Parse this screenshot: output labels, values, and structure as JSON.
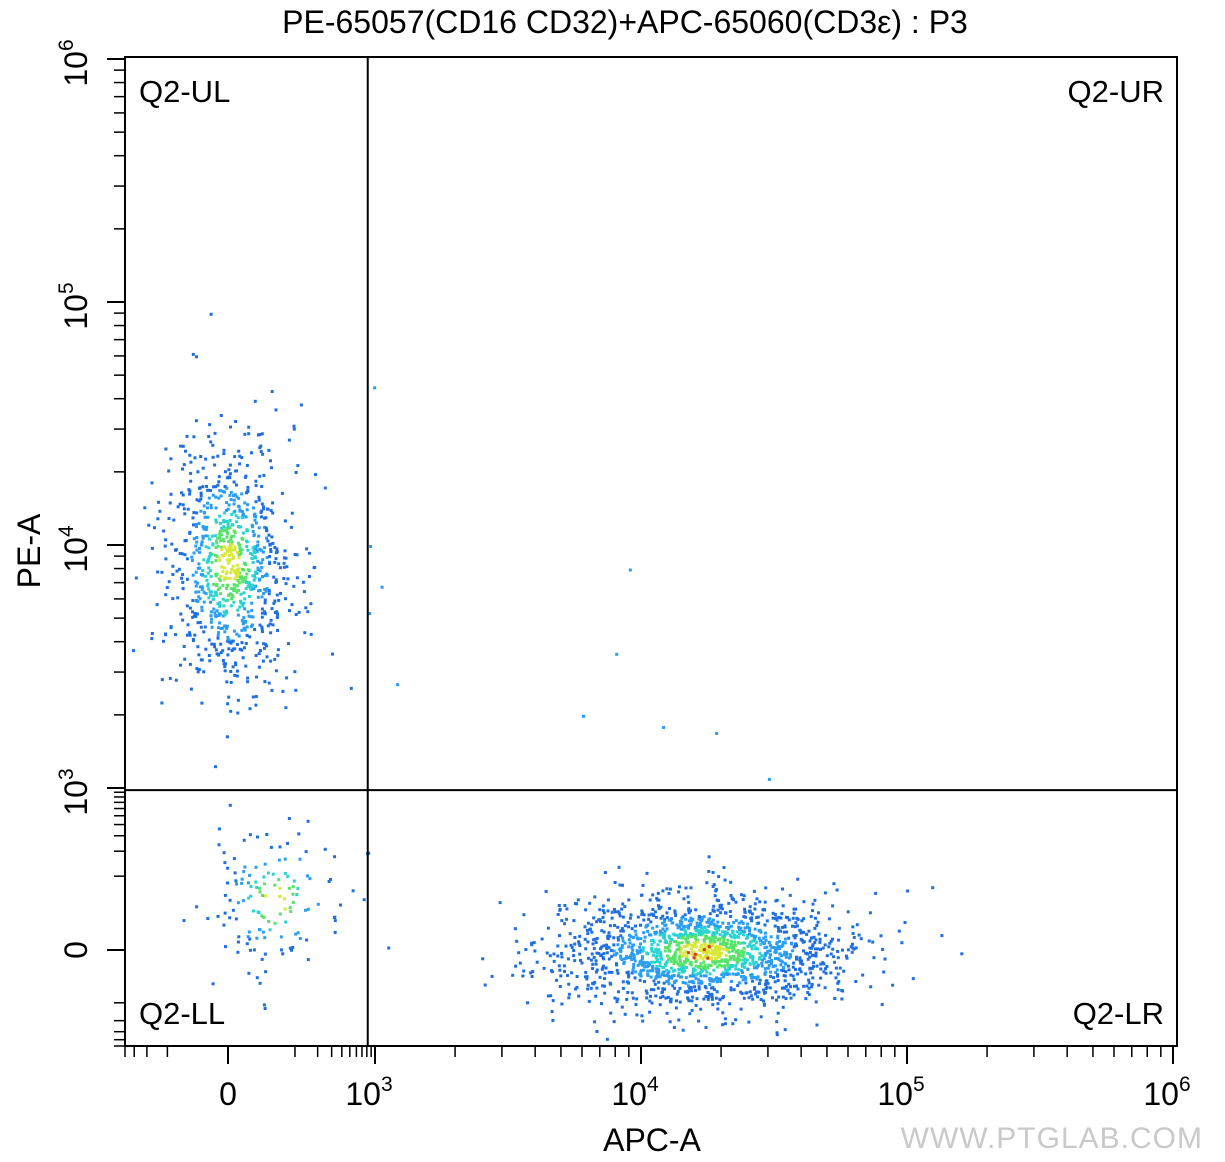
{
  "chart_data": {
    "type": "scatter",
    "title": "PE-65057(CD16 CD32)+APC-65060(CD3ε) : P3",
    "xlabel": "APC-A",
    "ylabel": "PE-A",
    "x_scale": "biexponential",
    "y_scale": "biexponential",
    "xlim": [
      -400,
      1000000
    ],
    "ylim": [
      -500,
      1000000
    ],
    "x_ticks": [
      {
        "value": 0,
        "base": "0",
        "exp": ""
      },
      {
        "value": 1000,
        "base": "10",
        "exp": "3"
      },
      {
        "value": 10000,
        "base": "10",
        "exp": "4"
      },
      {
        "value": 100000,
        "base": "10",
        "exp": "5"
      },
      {
        "value": 1000000,
        "base": "10",
        "exp": "6"
      }
    ],
    "y_ticks": [
      {
        "value": 0,
        "base": "0",
        "exp": ""
      },
      {
        "value": 1000,
        "base": "10",
        "exp": "3"
      },
      {
        "value": 10000,
        "base": "10",
        "exp": "4"
      },
      {
        "value": 100000,
        "base": "10",
        "exp": "5"
      },
      {
        "value": 1000000,
        "base": "10",
        "exp": "6"
      }
    ],
    "quadrant_gate": {
      "x": 820,
      "y": 950
    },
    "quadrants": [
      {
        "name": "Q2-UL",
        "position": "top-left"
      },
      {
        "name": "Q2-UR",
        "position": "top-right"
      },
      {
        "name": "Q2-LL",
        "position": "bottom-left"
      },
      {
        "name": "Q2-LR",
        "position": "bottom-right"
      }
    ],
    "populations": [
      {
        "quadrant": "Q2-UL",
        "x_center": 0,
        "y_center": 8500,
        "approx_events": 900
      },
      {
        "quadrant": "Q2-LR",
        "x_center": 17000,
        "y_center": 0,
        "approx_events": 1700
      },
      {
        "quadrant": "Q2-LL",
        "x_center": 50,
        "y_center": 50,
        "approx_events": 140
      }
    ],
    "outliers": [
      {
        "x": 950,
        "y": 45000
      },
      {
        "x": 9000,
        "y": 8000
      },
      {
        "x": 8000,
        "y": 3600
      },
      {
        "x": 1200,
        "y": 2700
      },
      {
        "x": 6000,
        "y": 2000
      },
      {
        "x": 12000,
        "y": 1800
      },
      {
        "x": 19000,
        "y": 1700
      },
      {
        "x": 30000,
        "y": 1100
      },
      {
        "x": 850,
        "y": 10000
      },
      {
        "x": 1050,
        "y": 6800
      },
      {
        "x": 830,
        "y": 5300
      }
    ],
    "density_colors": [
      "#1f6fe0",
      "#2a9df4",
      "#29d4d0",
      "#57e36a",
      "#d8e838",
      "#e0301e"
    ]
  },
  "watermark": "WWW.PTGLAB.COM"
}
